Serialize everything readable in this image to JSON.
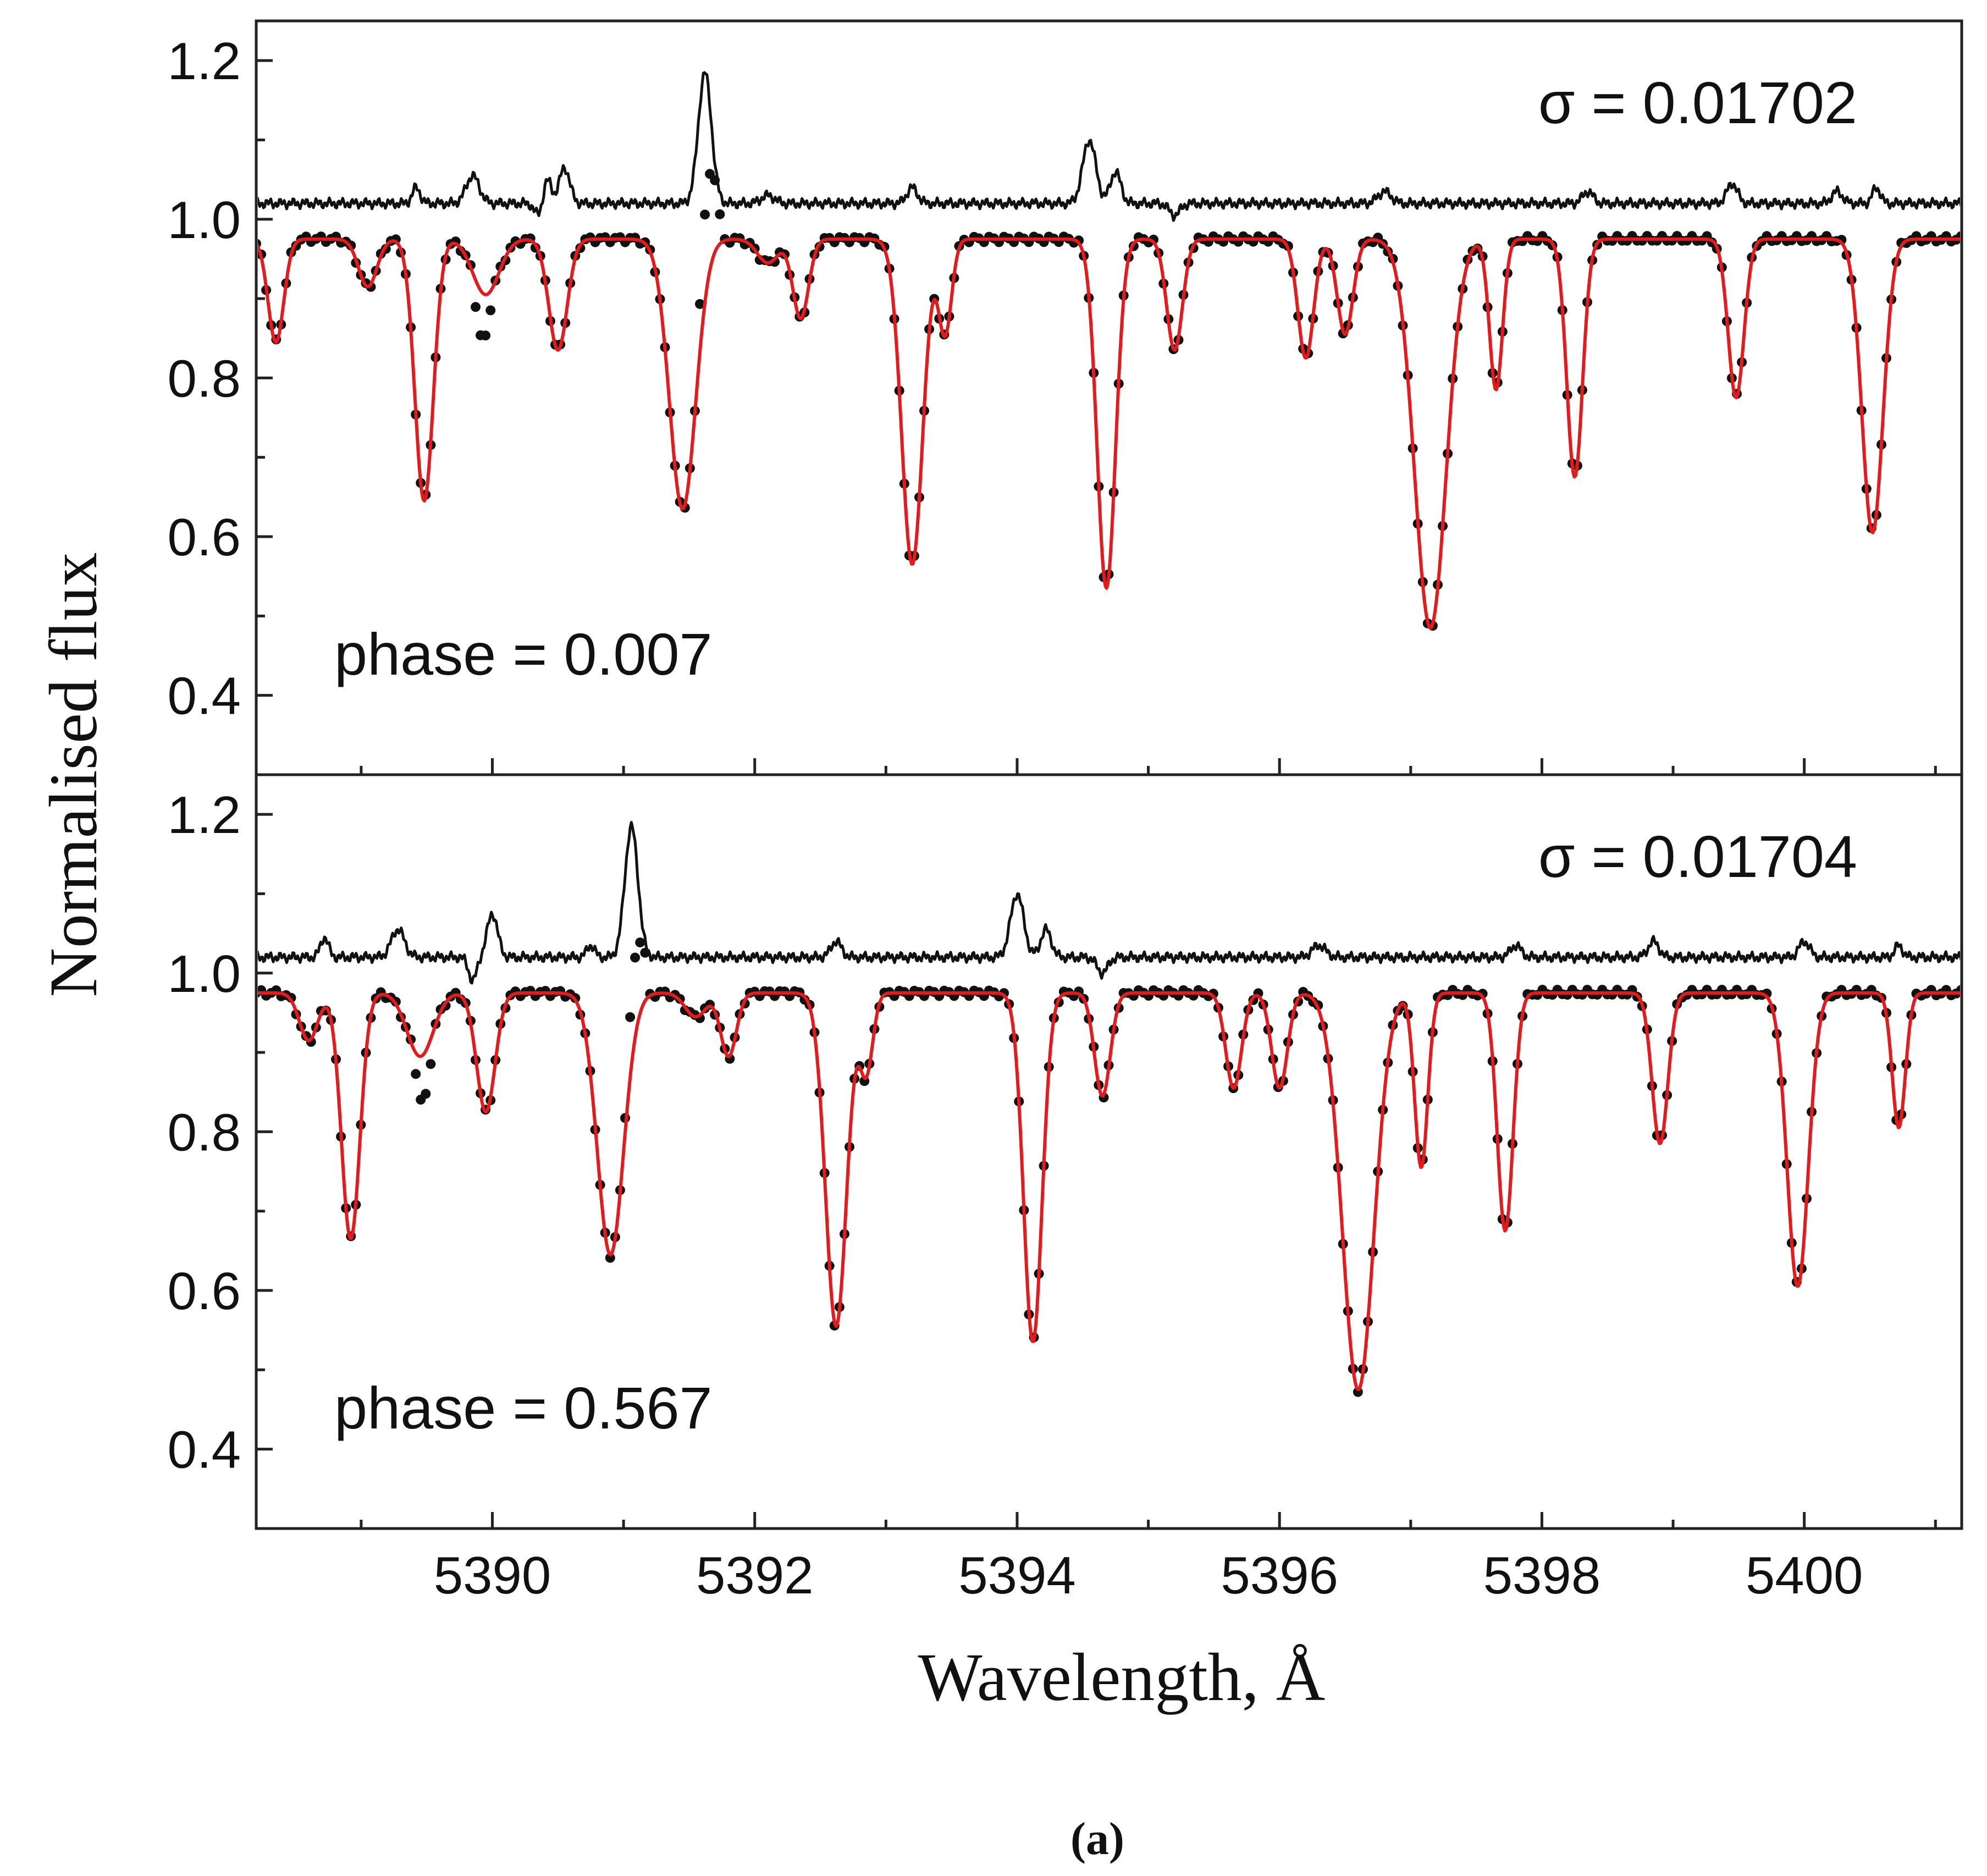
{
  "figure": {
    "caption": "(a)"
  },
  "colors": {
    "observed": "#111111",
    "model": "#e41a1c",
    "residual": "#111111"
  },
  "chart_data": [
    {
      "type": "line",
      "panel": "top",
      "xlabel": "Wavelength, Å",
      "ylabel": "Normalised flux",
      "xlim": [
        5388.2,
        5401.2
      ],
      "ylim": [
        0.3,
        1.25
      ],
      "xticks": [
        5390,
        5392,
        5394,
        5396,
        5398,
        5400
      ],
      "yticks": [
        0.4,
        0.6,
        0.8,
        1.0,
        1.2
      ],
      "ytick_labels": [
        "0.4",
        "0.6",
        "0.8",
        "1.0",
        "1.2"
      ],
      "sigma_label": "σ = 0.01702",
      "phase_label": "phase = 0.007",
      "series": [
        {
          "name": "observed",
          "style": "dots"
        },
        {
          "name": "model",
          "style": "line"
        },
        {
          "name": "residual (offset to 1.02)",
          "style": "line"
        }
      ],
      "continuum": 0.975,
      "residual_baseline": 1.02,
      "absorption_lines": [
        {
          "center": 5388.35,
          "depth": 0.13,
          "width": 0.06
        },
        {
          "center": 5389.05,
          "depth": 0.06,
          "width": 0.07
        },
        {
          "center": 5389.48,
          "depth": 0.33,
          "width": 0.07
        },
        {
          "center": 5389.95,
          "depth": 0.07,
          "width": 0.1
        },
        {
          "center": 5390.5,
          "depth": 0.14,
          "width": 0.07
        },
        {
          "center": 5391.45,
          "depth": 0.34,
          "width": 0.1
        },
        {
          "center": 5392.1,
          "depth": 0.03,
          "width": 0.08
        },
        {
          "center": 5392.35,
          "depth": 0.1,
          "width": 0.06
        },
        {
          "center": 5393.2,
          "depth": 0.41,
          "width": 0.08
        },
        {
          "center": 5393.45,
          "depth": 0.12,
          "width": 0.05
        },
        {
          "center": 5394.68,
          "depth": 0.44,
          "width": 0.07
        },
        {
          "center": 5395.2,
          "depth": 0.14,
          "width": 0.06
        },
        {
          "center": 5396.2,
          "depth": 0.15,
          "width": 0.06
        },
        {
          "center": 5396.5,
          "depth": 0.12,
          "width": 0.06
        },
        {
          "center": 5397.15,
          "depth": 0.49,
          "width": 0.12
        },
        {
          "center": 5397.65,
          "depth": 0.19,
          "width": 0.05
        },
        {
          "center": 5398.25,
          "depth": 0.3,
          "width": 0.06
        },
        {
          "center": 5399.48,
          "depth": 0.2,
          "width": 0.06
        },
        {
          "center": 5400.52,
          "depth": 0.37,
          "width": 0.08
        }
      ],
      "residual_features": [
        {
          "center": 5389.42,
          "amp": 0.02,
          "width": 0.03
        },
        {
          "center": 5389.85,
          "amp": 0.035,
          "width": 0.05
        },
        {
          "center": 5390.35,
          "amp": -0.015,
          "width": 0.03
        },
        {
          "center": 5390.42,
          "amp": 0.03,
          "width": 0.03
        },
        {
          "center": 5390.55,
          "amp": 0.045,
          "width": 0.04
        },
        {
          "center": 5391.62,
          "amp": 0.165,
          "width": 0.05
        },
        {
          "center": 5392.1,
          "amp": 0.01,
          "width": 0.05
        },
        {
          "center": 5393.2,
          "amp": 0.02,
          "width": 0.04
        },
        {
          "center": 5394.55,
          "amp": 0.08,
          "width": 0.05
        },
        {
          "center": 5394.75,
          "amp": 0.04,
          "width": 0.04
        },
        {
          "center": 5395.2,
          "amp": -0.015,
          "width": 0.04
        },
        {
          "center": 5396.8,
          "amp": 0.015,
          "width": 0.05
        },
        {
          "center": 5398.35,
          "amp": 0.015,
          "width": 0.04
        },
        {
          "center": 5399.45,
          "amp": 0.025,
          "width": 0.04
        },
        {
          "center": 5400.25,
          "amp": 0.015,
          "width": 0.04
        },
        {
          "center": 5400.55,
          "amp": 0.02,
          "width": 0.03
        }
      ],
      "observed_deviations": [
        {
          "from": 5389.85,
          "to": 5390.0,
          "delta": -0.06
        },
        {
          "from": 5391.55,
          "to": 5391.75,
          "delta": 0.12
        }
      ]
    },
    {
      "type": "line",
      "panel": "bottom",
      "xlabel": "Wavelength, Å",
      "ylabel": "Normalised flux",
      "xlim": [
        5388.2,
        5401.2
      ],
      "ylim": [
        0.3,
        1.25
      ],
      "xticks": [
        5390,
        5392,
        5394,
        5396,
        5398,
        5400
      ],
      "xtick_labels": [
        "5390",
        "5392",
        "5394",
        "5396",
        "5398",
        "5400"
      ],
      "yticks": [
        0.4,
        0.6,
        0.8,
        1.0,
        1.2
      ],
      "ytick_labels": [
        "0.4",
        "0.6",
        "0.8",
        "1.0",
        "1.2"
      ],
      "sigma_label": "σ = 0.01704",
      "phase_label": "phase = 0.567",
      "series": [
        {
          "name": "observed",
          "style": "dots"
        },
        {
          "name": "model",
          "style": "line"
        },
        {
          "name": "residual (offset to 1.02)",
          "style": "line"
        }
      ],
      "continuum": 0.975,
      "residual_baseline": 1.02,
      "absorption_lines": [
        {
          "center": 5388.6,
          "depth": 0.06,
          "width": 0.07
        },
        {
          "center": 5388.92,
          "depth": 0.31,
          "width": 0.07
        },
        {
          "center": 5389.45,
          "depth": 0.08,
          "width": 0.1
        },
        {
          "center": 5389.95,
          "depth": 0.15,
          "width": 0.07
        },
        {
          "center": 5390.9,
          "depth": 0.33,
          "width": 0.1
        },
        {
          "center": 5391.55,
          "depth": 0.03,
          "width": 0.08
        },
        {
          "center": 5391.8,
          "depth": 0.08,
          "width": 0.06
        },
        {
          "center": 5392.62,
          "depth": 0.42,
          "width": 0.08
        },
        {
          "center": 5392.85,
          "depth": 0.1,
          "width": 0.05
        },
        {
          "center": 5394.12,
          "depth": 0.44,
          "width": 0.07
        },
        {
          "center": 5394.65,
          "depth": 0.13,
          "width": 0.06
        },
        {
          "center": 5395.65,
          "depth": 0.12,
          "width": 0.06
        },
        {
          "center": 5396.0,
          "depth": 0.12,
          "width": 0.06
        },
        {
          "center": 5396.6,
          "depth": 0.5,
          "width": 0.12
        },
        {
          "center": 5397.08,
          "depth": 0.22,
          "width": 0.05
        },
        {
          "center": 5397.72,
          "depth": 0.3,
          "width": 0.06
        },
        {
          "center": 5398.9,
          "depth": 0.19,
          "width": 0.06
        },
        {
          "center": 5399.95,
          "depth": 0.37,
          "width": 0.08
        },
        {
          "center": 5400.72,
          "depth": 0.17,
          "width": 0.05
        }
      ],
      "residual_features": [
        {
          "center": 5388.72,
          "amp": 0.025,
          "width": 0.03
        },
        {
          "center": 5389.28,
          "amp": 0.035,
          "width": 0.05
        },
        {
          "center": 5389.85,
          "amp": -0.03,
          "width": 0.03
        },
        {
          "center": 5390.0,
          "amp": 0.055,
          "width": 0.04
        },
        {
          "center": 5390.75,
          "amp": 0.015,
          "width": 0.03
        },
        {
          "center": 5391.06,
          "amp": 0.165,
          "width": 0.05
        },
        {
          "center": 5392.62,
          "amp": 0.02,
          "width": 0.04
        },
        {
          "center": 5394.0,
          "amp": 0.08,
          "width": 0.05
        },
        {
          "center": 5394.22,
          "amp": 0.035,
          "width": 0.04
        },
        {
          "center": 5394.65,
          "amp": -0.02,
          "width": 0.04
        },
        {
          "center": 5396.3,
          "amp": 0.015,
          "width": 0.05
        },
        {
          "center": 5397.8,
          "amp": 0.015,
          "width": 0.04
        },
        {
          "center": 5398.85,
          "amp": 0.02,
          "width": 0.04
        },
        {
          "center": 5400.0,
          "amp": 0.02,
          "width": 0.04
        },
        {
          "center": 5400.72,
          "amp": 0.015,
          "width": 0.03
        }
      ],
      "observed_deviations": [
        {
          "from": 5389.4,
          "to": 5389.55,
          "delta": -0.06
        },
        {
          "from": 5391.0,
          "to": 5391.2,
          "delta": 0.1
        }
      ]
    }
  ]
}
